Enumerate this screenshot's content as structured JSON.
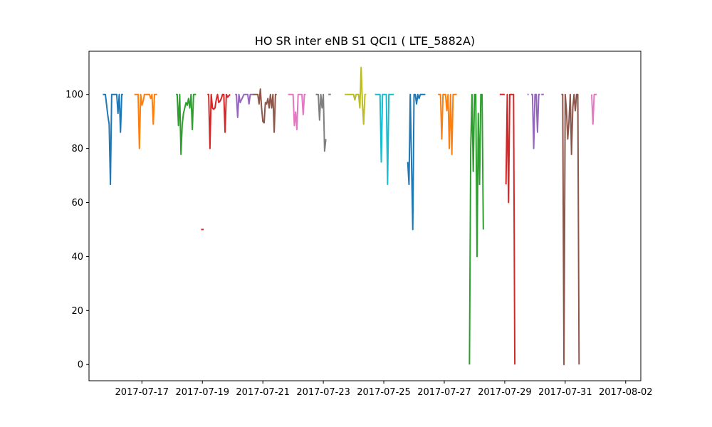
{
  "chart_data": {
    "type": "line",
    "title": "HO SR inter eNB S1 QCI1 ( LTE_5882A)",
    "xlabel": "",
    "ylabel": "",
    "ylim": [
      -6,
      116
    ],
    "xlim": [
      "2017-07-15T06:00",
      "2017-08-02T12:00"
    ],
    "yticks": [
      0,
      20,
      40,
      60,
      80,
      100
    ],
    "xticks": [
      "2017-07-17",
      "2017-07-19",
      "2017-07-21",
      "2017-07-23",
      "2017-07-25",
      "2017-07-27",
      "2017-07-29",
      "2017-07-31",
      "2017-08-02"
    ],
    "grid": false,
    "series": [
      {
        "color": "#1f77b4",
        "points": [
          [
            "2017-07-15T17:00",
            100
          ],
          [
            "2017-07-15T19:00",
            100
          ],
          [
            "2017-07-15T21:00",
            92
          ],
          [
            "2017-07-15T22:00",
            89
          ],
          [
            "2017-07-15T23:00",
            66.7
          ],
          [
            "2017-07-16T00:00",
            100
          ],
          [
            "2017-07-16T02:00",
            100
          ],
          [
            "2017-07-16T04:00",
            100
          ],
          [
            "2017-07-16T05:00",
            93
          ],
          [
            "2017-07-16T06:00",
            100
          ],
          [
            "2017-07-16T07:00",
            86
          ],
          [
            "2017-07-16T08:00",
            100
          ],
          [
            "2017-07-16T09:00",
            100
          ]
        ]
      },
      {
        "color": "#ff7f0e",
        "points": [
          [
            "2017-07-16T18:00",
            100
          ],
          [
            "2017-07-16T21:00",
            100
          ],
          [
            "2017-07-16T22:00",
            80
          ],
          [
            "2017-07-16T23:00",
            100
          ],
          [
            "2017-07-17T00:00",
            96
          ],
          [
            "2017-07-17T01:00",
            97.5
          ],
          [
            "2017-07-17T02:00",
            100
          ],
          [
            "2017-07-17T04:00",
            100
          ],
          [
            "2017-07-17T06:00",
            100
          ],
          [
            "2017-07-17T07:00",
            98.5
          ],
          [
            "2017-07-17T08:00",
            100
          ],
          [
            "2017-07-17T09:00",
            89
          ],
          [
            "2017-07-17T10:00",
            100
          ],
          [
            "2017-07-17T12:00",
            100
          ]
        ]
      },
      {
        "color": "#2ca02c",
        "points": [
          [
            "2017-07-18T03:00",
            100
          ],
          [
            "2017-07-18T04:00",
            100
          ],
          [
            "2017-07-18T05:00",
            88.5
          ],
          [
            "2017-07-18T06:00",
            100
          ],
          [
            "2017-07-18T07:00",
            77.8
          ],
          [
            "2017-07-18T08:00",
            89
          ],
          [
            "2017-07-18T09:00",
            93
          ],
          [
            "2017-07-18T10:00",
            95
          ],
          [
            "2017-07-18T11:00",
            97
          ],
          [
            "2017-07-18T12:00",
            96
          ],
          [
            "2017-07-18T13:00",
            98.5
          ],
          [
            "2017-07-18T14:00",
            95
          ],
          [
            "2017-07-18T15:00",
            100
          ],
          [
            "2017-07-18T16:00",
            87
          ],
          [
            "2017-07-18T17:00",
            100
          ],
          [
            "2017-07-18T19:00",
            100
          ]
        ]
      },
      {
        "color": "#d62728",
        "points": [
          [
            "2017-07-18T23:00",
            50
          ],
          [
            "2017-07-19T01:00",
            50
          ]
        ]
      },
      {
        "color": "#d62728",
        "points": [
          [
            "2017-07-19T04:00",
            100
          ],
          [
            "2017-07-19T05:00",
            100
          ],
          [
            "2017-07-19T06:00",
            80
          ],
          [
            "2017-07-19T07:00",
            100
          ],
          [
            "2017-07-19T08:00",
            95
          ],
          [
            "2017-07-19T09:00",
            94.5
          ],
          [
            "2017-07-19T10:00",
            95
          ],
          [
            "2017-07-19T11:00",
            98
          ],
          [
            "2017-07-19T12:00",
            100
          ],
          [
            "2017-07-19T13:00",
            97
          ],
          [
            "2017-07-19T14:00",
            97.5
          ],
          [
            "2017-07-19T15:00",
            98.5
          ],
          [
            "2017-07-19T16:00",
            100
          ],
          [
            "2017-07-19T17:00",
            100
          ],
          [
            "2017-07-19T18:00",
            86
          ],
          [
            "2017-07-19T19:00",
            100
          ],
          [
            "2017-07-19T20:00",
            99
          ],
          [
            "2017-07-19T22:00",
            100
          ]
        ]
      },
      {
        "color": "#9467bd",
        "points": [
          [
            "2017-07-20T02:00",
            100
          ],
          [
            "2017-07-20T03:00",
            100
          ],
          [
            "2017-07-20T04:00",
            91.5
          ],
          [
            "2017-07-20T05:00",
            100
          ],
          [
            "2017-07-20T06:00",
            97
          ],
          [
            "2017-07-20T07:00",
            98
          ],
          [
            "2017-07-20T08:00",
            99
          ],
          [
            "2017-07-20T09:00",
            100
          ],
          [
            "2017-07-20T10:00",
            100
          ],
          [
            "2017-07-20T12:00",
            100
          ],
          [
            "2017-07-20T13:00",
            96.5
          ],
          [
            "2017-07-20T14:00",
            100
          ],
          [
            "2017-07-20T16:00",
            100
          ]
        ]
      },
      {
        "color": "#8c564b",
        "points": [
          [
            "2017-07-20T16:00",
            100
          ],
          [
            "2017-07-20T18:00",
            100
          ],
          [
            "2017-07-20T20:00",
            100
          ],
          [
            "2017-07-20T21:00",
            96.5
          ],
          [
            "2017-07-20T22:00",
            102
          ],
          [
            "2017-07-20T23:00",
            95
          ],
          [
            "2017-07-21T00:00",
            90
          ],
          [
            "2017-07-21T01:00",
            89.5
          ],
          [
            "2017-07-21T02:00",
            97
          ],
          [
            "2017-07-21T03:00",
            96.5
          ],
          [
            "2017-07-21T04:00",
            98.5
          ],
          [
            "2017-07-21T05:00",
            95
          ],
          [
            "2017-07-21T06:00",
            100
          ],
          [
            "2017-07-21T07:00",
            95
          ],
          [
            "2017-07-21T08:00",
            100
          ],
          [
            "2017-07-21T09:00",
            86
          ],
          [
            "2017-07-21T10:00",
            100
          ],
          [
            "2017-07-21T11:00",
            100
          ]
        ]
      },
      {
        "color": "#e377c2",
        "points": [
          [
            "2017-07-21T20:00",
            100
          ],
          [
            "2017-07-22T00:00",
            100
          ],
          [
            "2017-07-22T01:00",
            88.5
          ],
          [
            "2017-07-22T02:00",
            93.5
          ],
          [
            "2017-07-22T03:00",
            87
          ],
          [
            "2017-07-22T04:00",
            100
          ],
          [
            "2017-07-22T07:00",
            100
          ],
          [
            "2017-07-22T08:00",
            92.5
          ],
          [
            "2017-07-22T09:00",
            100
          ],
          [
            "2017-07-22T10:00",
            100
          ]
        ]
      },
      {
        "color": "#7f7f7f",
        "points": [
          [
            "2017-07-22T18:00",
            100
          ],
          [
            "2017-07-22T20:00",
            100
          ],
          [
            "2017-07-22T21:00",
            90.5
          ],
          [
            "2017-07-22T22:00",
            100
          ],
          [
            "2017-07-22T23:00",
            95
          ],
          [
            "2017-07-23T00:00",
            100
          ],
          [
            "2017-07-23T01:00",
            79
          ],
          [
            "2017-07-23T02:00",
            83.5
          ]
        ]
      },
      {
        "color": "#7f7f7f",
        "points": [
          [
            "2017-07-23T04:00",
            100
          ],
          [
            "2017-07-23T06:00",
            100
          ]
        ]
      },
      {
        "color": "#bcbd22",
        "points": [
          [
            "2017-07-23T17:00",
            100
          ],
          [
            "2017-07-23T22:00",
            100
          ],
          [
            "2017-07-24T00:00",
            100
          ],
          [
            "2017-07-24T01:00",
            98
          ],
          [
            "2017-07-24T02:00",
            100
          ],
          [
            "2017-07-24T04:00",
            100
          ],
          [
            "2017-07-24T05:00",
            95
          ],
          [
            "2017-07-24T06:00",
            110
          ],
          [
            "2017-07-24T07:00",
            97
          ],
          [
            "2017-07-24T08:00",
            89
          ],
          [
            "2017-07-24T09:00",
            100
          ],
          [
            "2017-07-24T10:00",
            100
          ]
        ]
      },
      {
        "color": "#17becf",
        "points": [
          [
            "2017-07-24T17:00",
            100
          ],
          [
            "2017-07-24T21:00",
            100
          ],
          [
            "2017-07-24T22:00",
            75
          ],
          [
            "2017-07-24T23:00",
            100
          ],
          [
            "2017-07-25T02:00",
            100
          ],
          [
            "2017-07-25T03:00",
            66.7
          ],
          [
            "2017-07-25T04:00",
            100
          ],
          [
            "2017-07-25T06:00",
            100
          ],
          [
            "2017-07-25T08:00",
            100
          ]
        ]
      },
      {
        "color": "#1f77b4",
        "points": [
          [
            "2017-07-25T19:00",
            75
          ],
          [
            "2017-07-25T20:00",
            66.7
          ],
          [
            "2017-07-25T21:00",
            100
          ],
          [
            "2017-07-25T23:00",
            50
          ],
          [
            "2017-07-26T00:00",
            100
          ],
          [
            "2017-07-26T01:00",
            100
          ],
          [
            "2017-07-26T02:00",
            96.5
          ],
          [
            "2017-07-26T03:00",
            100
          ],
          [
            "2017-07-26T04:00",
            98.5
          ],
          [
            "2017-07-26T05:00",
            100
          ],
          [
            "2017-07-26T07:00",
            100
          ],
          [
            "2017-07-26T09:00",
            100
          ]
        ]
      },
      {
        "color": "#ff7f0e",
        "points": [
          [
            "2017-07-26T19:00",
            100
          ],
          [
            "2017-07-26T21:00",
            100
          ],
          [
            "2017-07-26T22:00",
            83.5
          ],
          [
            "2017-07-26T23:00",
            100
          ],
          [
            "2017-07-27T00:00",
            100
          ],
          [
            "2017-07-27T01:00",
            100
          ],
          [
            "2017-07-27T02:00",
            94
          ],
          [
            "2017-07-27T03:00",
            100
          ],
          [
            "2017-07-27T04:00",
            80
          ],
          [
            "2017-07-27T05:00",
            100
          ],
          [
            "2017-07-27T06:00",
            77.8
          ],
          [
            "2017-07-27T07:00",
            100
          ],
          [
            "2017-07-27T08:00",
            100
          ],
          [
            "2017-07-27T10:00",
            100
          ]
        ]
      },
      {
        "color": "#2ca02c",
        "points": [
          [
            "2017-07-27T20:00",
            0
          ],
          [
            "2017-07-27T21:00",
            80
          ],
          [
            "2017-07-27T22:00",
            100
          ],
          [
            "2017-07-27T23:00",
            71.5
          ],
          [
            "2017-07-28T00:00",
            100
          ],
          [
            "2017-07-28T01:00",
            100
          ],
          [
            "2017-07-28T02:00",
            40
          ],
          [
            "2017-07-28T03:00",
            93
          ],
          [
            "2017-07-28T04:00",
            66.7
          ],
          [
            "2017-07-28T05:00",
            100
          ],
          [
            "2017-07-28T06:00",
            100
          ],
          [
            "2017-07-28T07:00",
            50
          ]
        ]
      },
      {
        "color": "#d62728",
        "points": [
          [
            "2017-07-28T20:00",
            100
          ],
          [
            "2017-07-29T00:00",
            100
          ]
        ]
      },
      {
        "color": "#d62728",
        "points": [
          [
            "2017-07-29T01:00",
            66.7
          ],
          [
            "2017-07-29T02:00",
            100
          ],
          [
            "2017-07-29T03:00",
            60
          ],
          [
            "2017-07-29T04:00",
            100
          ],
          [
            "2017-07-29T05:00",
            100
          ],
          [
            "2017-07-29T07:00",
            100
          ],
          [
            "2017-07-29T08:00",
            0
          ]
        ]
      },
      {
        "color": "#9467bd",
        "points": [
          [
            "2017-07-29T18:00",
            100
          ],
          [
            "2017-07-29T19:00",
            100
          ]
        ]
      },
      {
        "color": "#9467bd",
        "points": [
          [
            "2017-07-29T21:00",
            100
          ],
          [
            "2017-07-29T22:00",
            100
          ],
          [
            "2017-07-29T23:00",
            80
          ],
          [
            "2017-07-30T00:00",
            100
          ],
          [
            "2017-07-30T01:00",
            100
          ],
          [
            "2017-07-30T02:00",
            86
          ],
          [
            "2017-07-30T03:00",
            100
          ],
          [
            "2017-07-30T04:00",
            100
          ]
        ]
      },
      {
        "color": "#9467bd",
        "points": [
          [
            "2017-07-30T05:00",
            100
          ],
          [
            "2017-07-30T07:00",
            100
          ]
        ]
      },
      {
        "color": "#8c564b",
        "points": [
          [
            "2017-07-30T21:00",
            100
          ],
          [
            "2017-07-30T22:00",
            100
          ],
          [
            "2017-07-30T23:00",
            0
          ],
          [
            "2017-07-31T00:00",
            100
          ],
          [
            "2017-07-31T01:00",
            94
          ],
          [
            "2017-07-31T02:00",
            83.5
          ],
          [
            "2017-07-31T03:00",
            90
          ],
          [
            "2017-07-31T04:00",
            100
          ],
          [
            "2017-07-31T05:00",
            77.8
          ],
          [
            "2017-07-31T06:00",
            95
          ],
          [
            "2017-07-31T07:00",
            100
          ],
          [
            "2017-07-31T08:00",
            94
          ],
          [
            "2017-07-31T09:00",
            100
          ],
          [
            "2017-07-31T10:00",
            100
          ],
          [
            "2017-07-31T11:00",
            0
          ]
        ]
      },
      {
        "color": "#e377c2",
        "points": [
          [
            "2017-07-31T21:00",
            100
          ],
          [
            "2017-07-31T22:00",
            89
          ],
          [
            "2017-07-31T23:00",
            100
          ],
          [
            "2017-08-01T01:00",
            100
          ]
        ]
      }
    ]
  }
}
